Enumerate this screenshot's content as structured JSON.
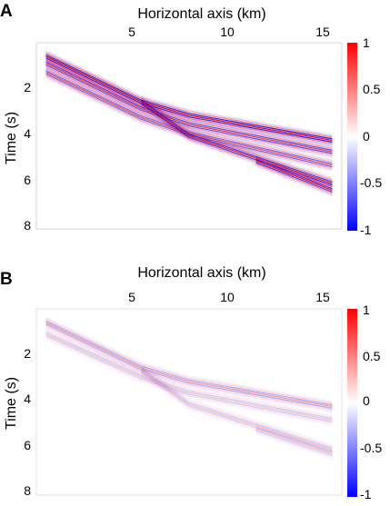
{
  "chart_data": [
    {
      "type": "heatmap",
      "panel_label": "A",
      "xlabel": "Horizontal axis (km)",
      "ylabel": "Time (s)",
      "xticks": [
        "5",
        "10",
        "15"
      ],
      "yticks": [
        "2",
        "4",
        "6",
        "8"
      ],
      "xlim": [
        0.5,
        16.5
      ],
      "ylim": [
        8.2,
        0
      ],
      "colorbar": {
        "ticks": [
          "1",
          "0.5",
          "0",
          "-0.5",
          "-1"
        ],
        "range": [
          -1,
          1
        ]
      },
      "colormap": [
        "#0000ff",
        "#ffffff",
        "#ff0000"
      ],
      "events": [
        {
          "x": [
            1,
            6,
            8.5,
            16
          ],
          "t": [
            0.6,
            2.6,
            3.2,
            4.3
          ],
          "amp": 1.0
        },
        {
          "x": [
            1,
            6,
            8.5,
            16
          ],
          "t": [
            0.9,
            2.9,
            3.6,
            4.8
          ],
          "amp": 0.8
        },
        {
          "x": [
            1,
            6,
            8.5,
            16
          ],
          "t": [
            1.3,
            3.3,
            4.0,
            5.4
          ],
          "amp": 0.7
        },
        {
          "x": [
            6,
            8.5,
            16
          ],
          "t": [
            2.6,
            4.1,
            6.2
          ],
          "amp": 0.9
        },
        {
          "x": [
            12,
            16
          ],
          "t": [
            5.2,
            6.5
          ],
          "amp": 0.9
        }
      ]
    },
    {
      "type": "heatmap",
      "panel_label": "B",
      "xlabel": "Horizontal axis (km)",
      "ylabel": "Time (s)",
      "xticks": [
        "5",
        "10",
        "15"
      ],
      "yticks": [
        "2",
        "4",
        "6",
        "8"
      ],
      "xlim": [
        0.5,
        16.5
      ],
      "ylim": [
        8.2,
        0
      ],
      "colorbar": {
        "ticks": [
          "1",
          "0.5",
          "0",
          "-0.5",
          "-1"
        ],
        "range": [
          -1,
          1
        ]
      },
      "colormap": [
        "#0000ff",
        "#ffffff",
        "#ff0000"
      ],
      "events": [
        {
          "x": [
            1,
            6,
            8.5,
            16
          ],
          "t": [
            0.6,
            2.6,
            3.2,
            4.3
          ],
          "amp": 0.4
        },
        {
          "x": [
            1,
            6,
            8.5,
            16
          ],
          "t": [
            1.1,
            3.0,
            3.7,
            4.9
          ],
          "amp": 0.25
        },
        {
          "x": [
            6,
            8.5,
            16
          ],
          "t": [
            2.7,
            4.2,
            6.2
          ],
          "amp": 0.25
        },
        {
          "x": [
            12,
            16
          ],
          "t": [
            5.3,
            6.4
          ],
          "amp": 0.2
        }
      ]
    }
  ]
}
